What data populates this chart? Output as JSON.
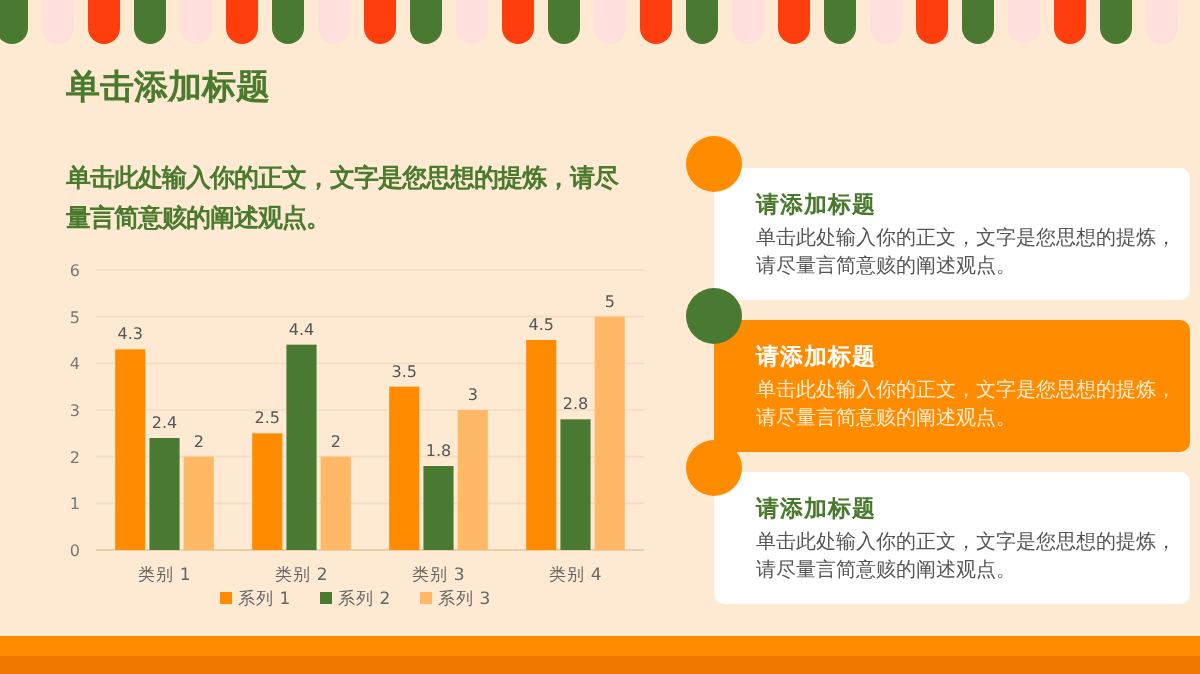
{
  "chart_data": {
    "type": "bar",
    "title": "单击添加标题",
    "subtitle": "单击此处输入你的正文，文字是您思想的提炼，请尽量言简意赅的阐述观点。",
    "categories": [
      "类别 1",
      "类别 2",
      "类别 3",
      "类别 4"
    ],
    "series": [
      {
        "name": "系列 1",
        "color": "#ff8c00",
        "values": [
          4.3,
          2.5,
          3.5,
          4.5
        ]
      },
      {
        "name": "系列 2",
        "color": "#4a7a32",
        "values": [
          2.4,
          4.4,
          1.8,
          2.8
        ]
      },
      {
        "name": "系列 3",
        "color": "#ffb866",
        "values": [
          2,
          2,
          3,
          5
        ]
      }
    ],
    "ylim": [
      0,
      6
    ],
    "yticks": [
      0,
      1,
      2,
      3,
      4,
      5,
      6
    ],
    "grid": "y",
    "data_labels": true,
    "legend": "bottom",
    "annotations": [
      "请添加标题",
      "单击此处输入你的正文，文字是您思想的提炼，请尽量言简意赅的阐述观点。",
      "请添加标题",
      "单击此处输入你的正文，文字是您思想的提炼，请尽量言简意赅的阐述观点。",
      "请添加标题",
      "单击此处输入你的正文，文字是您思想的提炼，请尽量言简意赅的阐述观点。"
    ]
  }
}
